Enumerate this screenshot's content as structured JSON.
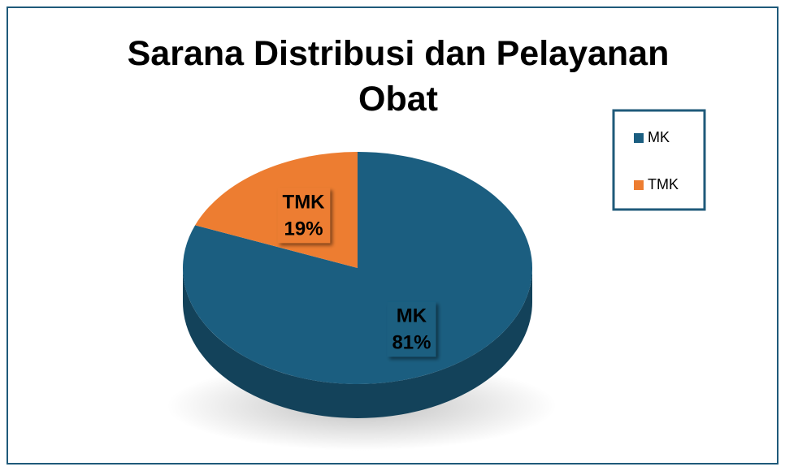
{
  "chart_data": {
    "type": "pie",
    "title": "Sarana Distribusi dan Pelayanan Obat",
    "categories": [
      "MK",
      "TMK"
    ],
    "values": [
      81,
      19
    ],
    "value_labels": [
      "81%",
      "19%"
    ],
    "colors": [
      "#1b5e80",
      "#ed7d31"
    ],
    "legend": "right"
  }
}
